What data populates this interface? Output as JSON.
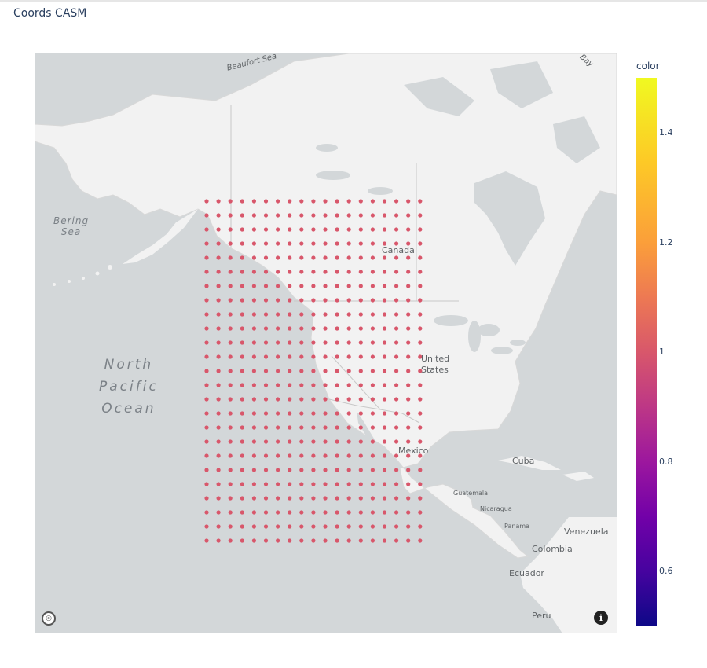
{
  "title": "Coords CASM",
  "map": {
    "labels": {
      "beaufort_sea": "Beaufort Sea",
      "hudson_bay": "Bay",
      "bering_sea_line1": "Bering",
      "bering_sea_line2": "Sea",
      "north_pacific_line1": "North",
      "north_pacific_line2": "Pacific",
      "north_pacific_line3": "Ocean",
      "canada": "Canada",
      "united_states_line1": "United",
      "united_states_line2": "States",
      "mexico": "Mexico",
      "cuba": "Cuba",
      "guatemala": "Guatemala",
      "nicaragua": "Nicaragua",
      "panama": "Panama",
      "venezuela": "Venezuela",
      "colombia": "Colombia",
      "ecuador": "Ecuador",
      "peru": "Peru"
    },
    "points": {
      "rows": 25,
      "cols": 19,
      "value": 1,
      "color": "#d8576b"
    },
    "colors": {
      "water": "#d3d7d9",
      "land": "#f2f2f2",
      "borders": "#c8c8c8"
    },
    "buttons": {
      "logo_icon": "mapbox-logo-icon",
      "info_icon": "info-icon",
      "info_glyph": "i"
    }
  },
  "colorbar": {
    "title": "color",
    "colorscale": "plasma",
    "range": [
      0.5,
      1.5
    ],
    "ticks": [
      "1.4",
      "1.2",
      "1",
      "0.8",
      "0.6"
    ]
  }
}
